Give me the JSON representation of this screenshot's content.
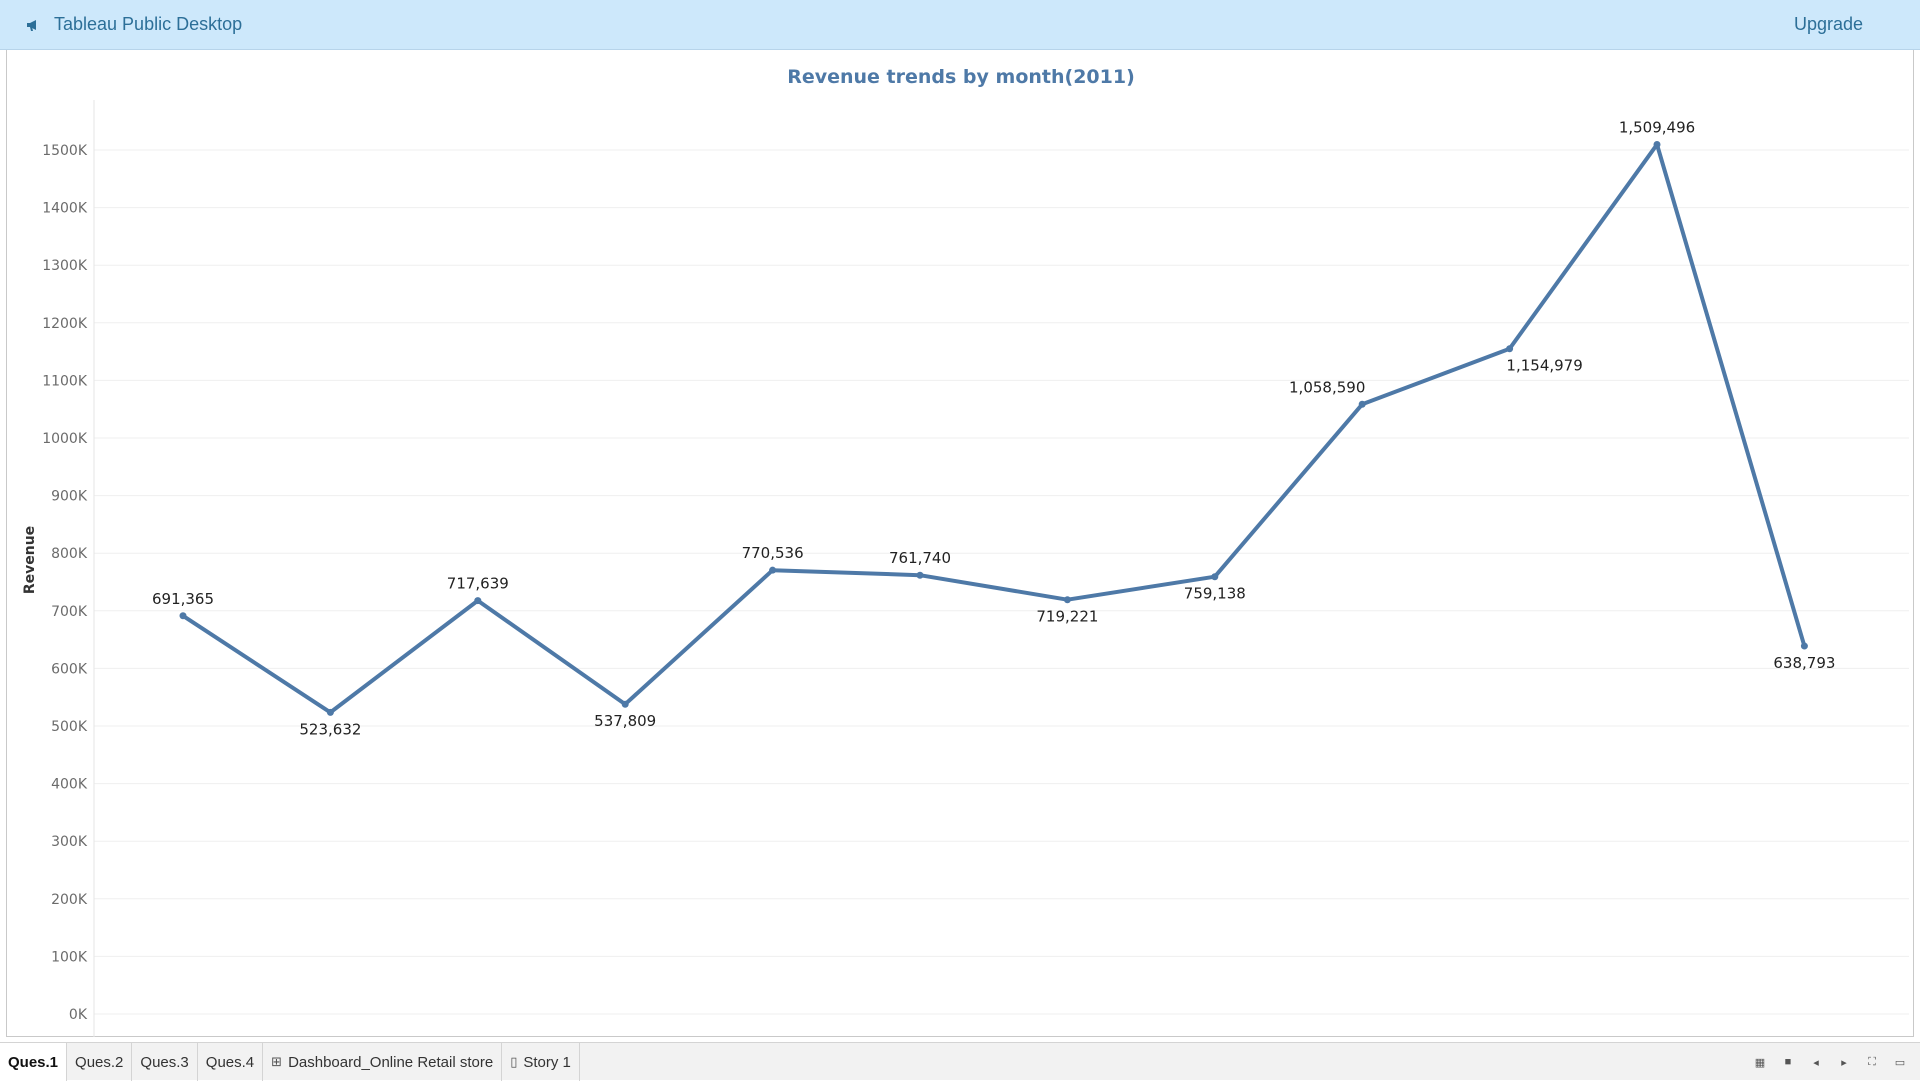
{
  "app": {
    "title": "Tableau Public Desktop",
    "upgrade_label": "Upgrade"
  },
  "tabs": [
    {
      "label": "Ques.1",
      "icon": "",
      "active": true
    },
    {
      "label": "Ques.2",
      "icon": "",
      "active": false
    },
    {
      "label": "Ques.3",
      "icon": "",
      "active": false
    },
    {
      "label": "Ques.4",
      "icon": "",
      "active": false
    },
    {
      "label": "Dashboard_Online Retail store",
      "icon": "dashboard-icon",
      "active": false
    },
    {
      "label": "Story 1",
      "icon": "story-icon",
      "active": false
    }
  ],
  "controls": [
    "grid-view-icon",
    "filmstrip-view-icon",
    "prev-sheet-icon",
    "next-sheet-icon",
    "fullscreen-icon",
    "presentation-icon"
  ],
  "colors": {
    "line": "#4e79a7",
    "topbar": "#cde8fb",
    "brand_text": "#2c6f98"
  },
  "chart_data": {
    "type": "line",
    "title": "Revenue trends by month(2011)",
    "xlabel": "",
    "ylabel": "Revenue",
    "ylim": [
      0,
      1500000
    ],
    "yticks": [
      0,
      100000,
      200000,
      300000,
      400000,
      500000,
      600000,
      700000,
      800000,
      900000,
      1000000,
      1100000,
      1200000,
      1300000,
      1400000,
      1500000
    ],
    "ytick_labels": [
      "0K",
      "100K",
      "200K",
      "300K",
      "400K",
      "500K",
      "600K",
      "700K",
      "800K",
      "900K",
      "1000K",
      "1100K",
      "1200K",
      "1300K",
      "1400K",
      "1500K"
    ],
    "grid": true,
    "series": [
      {
        "values": [
          691365,
          523632,
          717639,
          537809,
          770536,
          761740,
          719221,
          759138,
          1058590,
          1154979,
          1509496,
          638793
        ],
        "labels": [
          "691,365",
          "523,632",
          "717,639",
          "537,809",
          "770,536",
          "761,740",
          "719,221",
          "759,138",
          "1,058,590",
          "1,154,979",
          "1,509,496",
          "638,793"
        ],
        "label_pos": [
          "above",
          "below",
          "above",
          "below",
          "above",
          "above",
          "below",
          "below",
          "above-left",
          "below-right",
          "above",
          "below"
        ]
      }
    ]
  }
}
